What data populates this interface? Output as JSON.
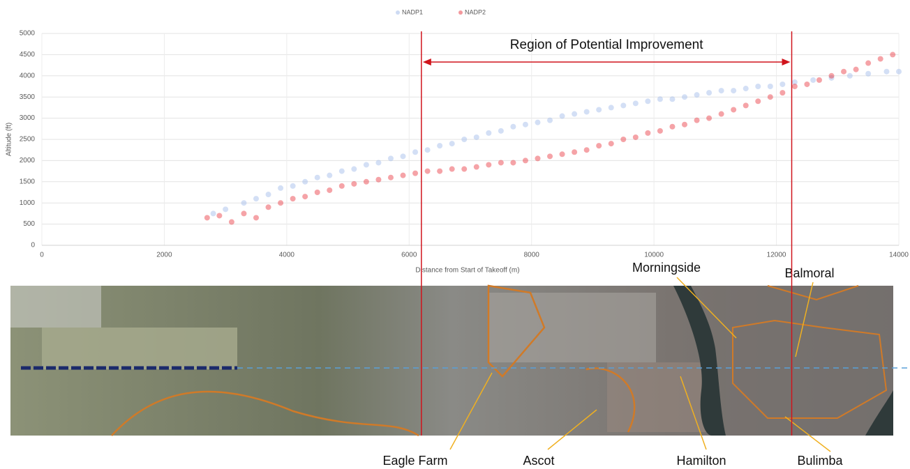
{
  "chart_data": {
    "type": "scatter",
    "x_label": "Distance from Start of Takeoff (m)",
    "y_label": "Altitude (ft)",
    "xlim": [
      0,
      14000
    ],
    "xticks": [
      0,
      2000,
      4000,
      6000,
      8000,
      10000,
      12000,
      14000
    ],
    "ylim": [
      0,
      5000
    ],
    "yticks": [
      0,
      500,
      1000,
      1500,
      2000,
      2500,
      3000,
      3500,
      4000,
      4500,
      5000
    ],
    "grid": true,
    "legend": "top",
    "annotation": {
      "text": "Region of Potential Improvement",
      "x_range": [
        6200,
        12250
      ],
      "color": "#d0141c"
    },
    "series": [
      {
        "name": "NADP1",
        "color": "#9db8e8",
        "x": [
          2800,
          3000,
          3300,
          3500,
          3700,
          3900,
          4100,
          4300,
          4500,
          4700,
          4900,
          5100,
          5300,
          5500,
          5700,
          5900,
          6100,
          6300,
          6500,
          6700,
          6900,
          7100,
          7300,
          7500,
          7700,
          7900,
          8100,
          8300,
          8500,
          8700,
          8900,
          9100,
          9300,
          9500,
          9700,
          9900,
          10100,
          10300,
          10500,
          10700,
          10900,
          11100,
          11300,
          11500,
          11700,
          11900,
          12100,
          12300,
          12600,
          12900,
          13200,
          13500,
          13800,
          14000
        ],
        "values": [
          750,
          850,
          1000,
          1100,
          1200,
          1350,
          1400,
          1500,
          1600,
          1650,
          1750,
          1800,
          1900,
          1950,
          2050,
          2100,
          2200,
          2250,
          2350,
          2400,
          2500,
          2550,
          2650,
          2700,
          2800,
          2850,
          2900,
          2950,
          3050,
          3100,
          3150,
          3200,
          3250,
          3300,
          3350,
          3400,
          3450,
          3450,
          3500,
          3550,
          3600,
          3650,
          3650,
          3700,
          3750,
          3750,
          3800,
          3850,
          3900,
          3950,
          4000,
          4050,
          4100,
          4100
        ]
      },
      {
        "name": "NADP2",
        "color": "#e8323c",
        "x": [
          2700,
          2900,
          3100,
          3300,
          3500,
          3700,
          3900,
          4100,
          4300,
          4500,
          4700,
          4900,
          5100,
          5300,
          5500,
          5700,
          5900,
          6100,
          6300,
          6500,
          6700,
          6900,
          7100,
          7300,
          7500,
          7700,
          7900,
          8100,
          8300,
          8500,
          8700,
          8900,
          9100,
          9300,
          9500,
          9700,
          9900,
          10100,
          10300,
          10500,
          10700,
          10900,
          11100,
          11300,
          11500,
          11700,
          11900,
          12100,
          12300,
          12500,
          12700,
          12900,
          13100,
          13300,
          13500,
          13700,
          13900
        ],
        "values": [
          650,
          700,
          550,
          750,
          650,
          900,
          1000,
          1100,
          1150,
          1250,
          1300,
          1400,
          1450,
          1500,
          1550,
          1600,
          1650,
          1700,
          1750,
          1750,
          1800,
          1800,
          1850,
          1900,
          1950,
          1950,
          2000,
          2050,
          2100,
          2150,
          2200,
          2250,
          2350,
          2400,
          2500,
          2550,
          2650,
          2700,
          2800,
          2850,
          2950,
          3000,
          3100,
          3200,
          3300,
          3400,
          3500,
          3600,
          3750,
          3800,
          3900,
          4000,
          4100,
          4150,
          4300,
          4400,
          4500
        ]
      }
    ]
  },
  "map_labels": [
    "Morningside",
    "Balmoral",
    "Eagle Farm",
    "Ascot",
    "Hamilton",
    "Bulimba"
  ]
}
